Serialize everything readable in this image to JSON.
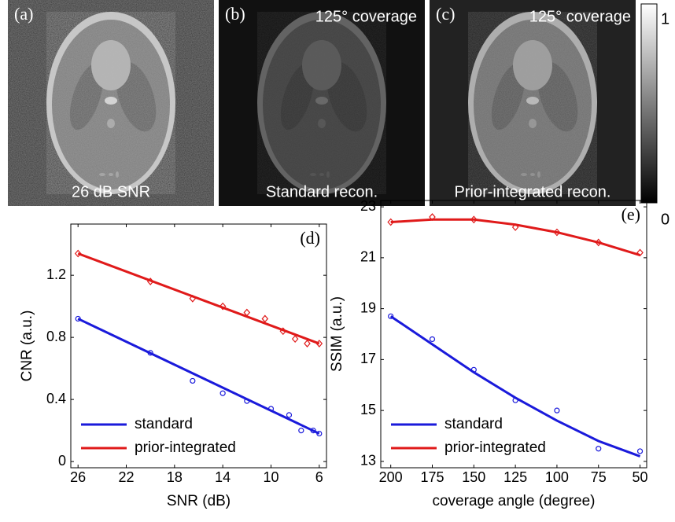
{
  "panels": [
    {
      "letter": "(a)",
      "caption": "26 dB SNR"
    },
    {
      "letter": "(b)",
      "note": "125° coverage",
      "caption": "Standard recon."
    },
    {
      "letter": "(c)",
      "note": "125° coverage",
      "caption": "Prior-integrated recon."
    }
  ],
  "colorbar": {
    "ticks": [
      0,
      1
    ]
  },
  "chart_data": [
    {
      "type": "scatter",
      "panel_label": "(d)",
      "x_label": "SNR (dB)",
      "y_label": "CNR (a.u.)",
      "xlim": [
        26.6,
        5.4
      ],
      "xticks": [
        26,
        22,
        18,
        14,
        10,
        6
      ],
      "ylim": [
        -0.04,
        1.53
      ],
      "yticks": [
        0,
        0.4,
        0.8,
        1.2
      ],
      "legend": "lower left",
      "series": [
        {
          "name": "standard",
          "color": "#1a1adb",
          "marker": "circle",
          "x": [
            26,
            20,
            16.5,
            14,
            12,
            10,
            8.5,
            7.5,
            6.5,
            6
          ],
          "values": [
            0.92,
            0.7,
            0.52,
            0.44,
            0.39,
            0.34,
            0.3,
            0.2,
            0.2,
            0.18
          ],
          "fit_x": [
            26,
            6
          ],
          "fit_values": [
            0.92,
            0.18
          ]
        },
        {
          "name": "prior-integrated",
          "color": "#e01a1a",
          "marker": "diamond",
          "x": [
            26,
            20,
            16.5,
            14,
            12,
            10.5,
            9,
            8,
            7,
            6
          ],
          "values": [
            1.34,
            1.16,
            1.05,
            1.0,
            0.96,
            0.92,
            0.84,
            0.79,
            0.76,
            0.76
          ],
          "fit_x": [
            26,
            6
          ],
          "fit_values": [
            1.34,
            0.76
          ]
        }
      ]
    },
    {
      "type": "scatter",
      "panel_label": "(e)",
      "x_label": "coverage angle (degree)",
      "y_label": "SSIM (a.u.)",
      "xlim": [
        206,
        46
      ],
      "xticks": [
        200,
        175,
        150,
        125,
        100,
        75,
        50
      ],
      "ylim": [
        12.75,
        23.25
      ],
      "yticks": [
        13,
        15,
        17,
        19,
        21,
        23
      ],
      "legend": "lower left",
      "series": [
        {
          "name": "standard",
          "color": "#1a1adb",
          "marker": "circle",
          "x": [
            200,
            175,
            150,
            125,
            100,
            75,
            50
          ],
          "values": [
            18.7,
            17.8,
            16.6,
            15.4,
            15.0,
            13.5,
            13.4
          ],
          "fit_x": [
            200,
            175,
            150,
            125,
            100,
            75,
            50
          ],
          "fit_values": [
            18.7,
            17.6,
            16.5,
            15.5,
            14.6,
            13.8,
            13.2
          ]
        },
        {
          "name": "prior-integrated",
          "color": "#e01a1a",
          "marker": "diamond",
          "x": [
            200,
            175,
            150,
            125,
            100,
            75,
            50
          ],
          "values": [
            22.4,
            22.6,
            22.5,
            22.2,
            22.0,
            21.6,
            21.2
          ],
          "fit_x": [
            200,
            175,
            150,
            125,
            100,
            75,
            50
          ],
          "fit_values": [
            22.4,
            22.5,
            22.5,
            22.3,
            22.0,
            21.6,
            21.1
          ]
        }
      ]
    }
  ]
}
